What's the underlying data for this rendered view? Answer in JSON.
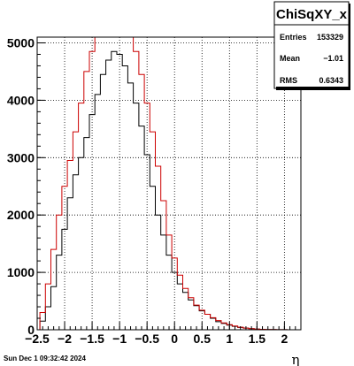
{
  "chart_data": {
    "type": "histogram",
    "title": "",
    "xlabel": "η",
    "ylabel": "",
    "xlim": [
      -2.5,
      2.3
    ],
    "ylim": [
      0,
      5100
    ],
    "x_ticks": [
      -2.5,
      -2,
      -1.5,
      -1,
      -0.5,
      0,
      0.5,
      1,
      1.5,
      2
    ],
    "x_tick_labels": [
      "−2.5",
      "−2",
      "−1.5",
      "−1",
      "−0.5",
      "0",
      "0.5",
      "1",
      "1.5",
      "2"
    ],
    "y_ticks": [
      0,
      1000,
      2000,
      3000,
      4000,
      5000
    ],
    "y_tick_labels": [
      "0",
      "1000",
      "2000",
      "3000",
      "4000",
      "5000"
    ],
    "grid": true,
    "series": [
      {
        "color": "#000000",
        "points": [
          [
            -2.4,
            150
          ],
          [
            -2.3,
            400
          ],
          [
            -2.2,
            750
          ],
          [
            -2.1,
            1300
          ],
          [
            -2.0,
            1750
          ],
          [
            -1.9,
            2300
          ],
          [
            -1.8,
            2700
          ],
          [
            -1.7,
            3000
          ],
          [
            -1.6,
            3350
          ],
          [
            -1.5,
            3750
          ],
          [
            -1.4,
            4100
          ],
          [
            -1.3,
            4450
          ],
          [
            -1.2,
            4700
          ],
          [
            -1.1,
            4850
          ],
          [
            -1.0,
            4800
          ],
          [
            -0.9,
            4600
          ],
          [
            -0.8,
            4300
          ],
          [
            -0.7,
            3950
          ],
          [
            -0.6,
            3550
          ],
          [
            -0.5,
            3050
          ],
          [
            -0.4,
            2500
          ],
          [
            -0.3,
            2000
          ],
          [
            -0.2,
            1650
          ],
          [
            -0.1,
            1300
          ],
          [
            0.0,
            1000
          ],
          [
            0.1,
            800
          ],
          [
            0.2,
            650
          ],
          [
            0.3,
            520
          ],
          [
            0.4,
            420
          ],
          [
            0.5,
            330
          ],
          [
            0.6,
            270
          ],
          [
            0.7,
            200
          ],
          [
            0.8,
            140
          ],
          [
            0.9,
            110
          ],
          [
            1.0,
            80
          ],
          [
            1.1,
            60
          ],
          [
            1.2,
            40
          ],
          [
            1.3,
            30
          ],
          [
            1.4,
            20
          ],
          [
            1.5,
            12
          ],
          [
            1.6,
            8
          ],
          [
            1.7,
            5
          ],
          [
            1.8,
            3
          ],
          [
            1.9,
            2
          ],
          [
            2.0,
            1
          ],
          [
            2.1,
            0
          ],
          [
            2.2,
            0
          ]
        ]
      },
      {
        "color": "#cc0000",
        "points": [
          [
            -2.4,
            300
          ],
          [
            -2.3,
            800
          ],
          [
            -2.2,
            1400
          ],
          [
            -2.1,
            2000
          ],
          [
            -2.0,
            2500
          ],
          [
            -1.9,
            2950
          ],
          [
            -1.8,
            3450
          ],
          [
            -1.7,
            3950
          ],
          [
            -1.6,
            4500
          ],
          [
            -1.5,
            4850
          ],
          [
            -1.4,
            5150
          ],
          [
            -1.3,
            5350
          ],
          [
            -1.2,
            5450
          ],
          [
            -1.1,
            5500
          ],
          [
            -1.0,
            5500
          ],
          [
            -0.9,
            5450
          ],
          [
            -0.8,
            5250
          ],
          [
            -0.7,
            4850
          ],
          [
            -0.6,
            4450
          ],
          [
            -0.5,
            3950
          ],
          [
            -0.4,
            3450
          ],
          [
            -0.3,
            2850
          ],
          [
            -0.2,
            2250
          ],
          [
            -0.1,
            1650
          ],
          [
            0.0,
            1250
          ],
          [
            0.1,
            950
          ],
          [
            0.2,
            720
          ],
          [
            0.3,
            560
          ],
          [
            0.4,
            430
          ],
          [
            0.5,
            340
          ],
          [
            0.6,
            270
          ],
          [
            0.7,
            210
          ],
          [
            0.8,
            160
          ],
          [
            0.9,
            120
          ],
          [
            1.0,
            90
          ],
          [
            1.1,
            65
          ],
          [
            1.2,
            45
          ],
          [
            1.3,
            30
          ],
          [
            1.4,
            20
          ],
          [
            1.5,
            13
          ],
          [
            1.6,
            8
          ],
          [
            1.7,
            5
          ],
          [
            1.8,
            3
          ],
          [
            1.9,
            2
          ],
          [
            2.0,
            1
          ],
          [
            2.1,
            0
          ],
          [
            2.2,
            0
          ]
        ]
      }
    ]
  },
  "stats_box": {
    "title": "ChiSqXY_x",
    "rows": [
      {
        "label": "Entries",
        "value": "153329"
      },
      {
        "label": "Mean",
        "value": "−1.01"
      },
      {
        "label": "RMS",
        "value": "0.6343"
      }
    ]
  },
  "footer": {
    "timestamp": "Sun Dec  1 09:32:42 2024"
  }
}
